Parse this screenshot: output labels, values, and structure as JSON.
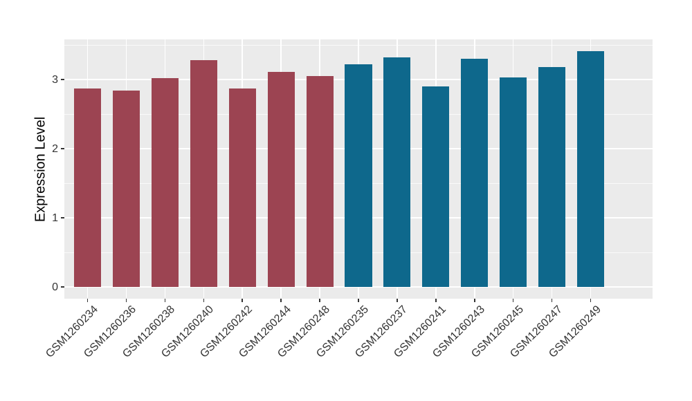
{
  "chart_data": {
    "type": "bar",
    "title": "",
    "xlabel": "",
    "ylabel": "Expression Level",
    "categories": [
      "GSM1260234",
      "GSM1260236",
      "GSM1260238",
      "GSM1260240",
      "GSM1260242",
      "GSM1260244",
      "GSM1260248",
      "GSM1260235",
      "GSM1260237",
      "GSM1260241",
      "GSM1260243",
      "GSM1260245",
      "GSM1260247",
      "GSM1260249"
    ],
    "values": [
      2.87,
      2.84,
      3.02,
      3.28,
      2.87,
      3.11,
      3.05,
      3.22,
      3.32,
      2.9,
      3.3,
      3.03,
      3.18,
      3.41
    ],
    "bar_groups": [
      0,
      0,
      0,
      0,
      0,
      0,
      0,
      1,
      1,
      1,
      1,
      1,
      1,
      1
    ],
    "group_colors": [
      "#9C4452",
      "#0E688C"
    ],
    "y_ticks": [
      0,
      1,
      2,
      3
    ],
    "y_minor_ticks": [
      0.5,
      1.5,
      2.5,
      3.5
    ],
    "ylim": [
      -0.17,
      3.58
    ],
    "x_label_rotation_deg": 45,
    "grid": "on",
    "legend": "none",
    "panel_background": "#EBEBEB",
    "figure_background": "#FFFFFF",
    "grid_color": "#FFFFFF",
    "axis_text_color": "#333333",
    "tick_color": "#333333"
  }
}
